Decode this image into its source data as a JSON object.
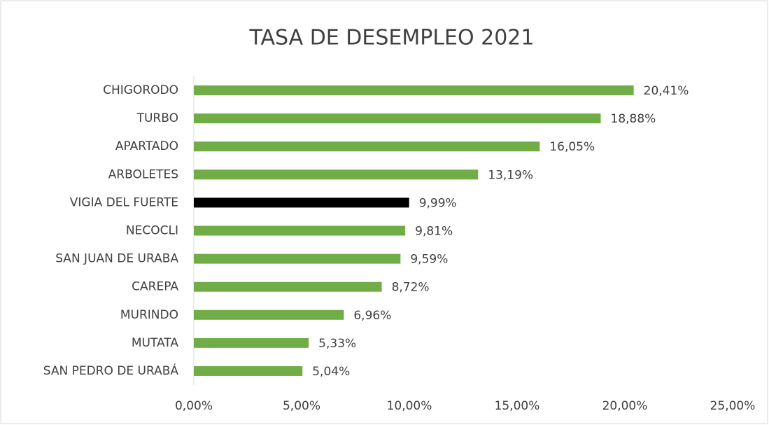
{
  "chart_data": {
    "type": "bar",
    "orientation": "horizontal",
    "title": "TASA DE DESEMPLEO 2021",
    "categories": [
      "CHIGORODO",
      "TURBO",
      "APARTADO",
      "ARBOLETES",
      "VIGIA DEL FUERTE",
      "NECOCLI",
      "SAN JUAN DE URABA",
      "CAREPA",
      "MURINDO",
      "MUTATA",
      "SAN PEDRO DE URABÁ"
    ],
    "values": [
      20.41,
      18.88,
      16.05,
      13.19,
      9.99,
      9.81,
      9.59,
      8.72,
      6.96,
      5.33,
      5.04
    ],
    "value_labels": [
      "20,41%",
      "18,88%",
      "16,05%",
      "13,19%",
      "9,99%",
      "9,81%",
      "9,59%",
      "8,72%",
      "6,96%",
      "5,33%",
      "5,04%"
    ],
    "colors": [
      "#70ad47",
      "#70ad47",
      "#70ad47",
      "#70ad47",
      "#000000",
      "#70ad47",
      "#70ad47",
      "#70ad47",
      "#70ad47",
      "#70ad47",
      "#70ad47"
    ],
    "xlim": [
      0,
      25
    ],
    "xticks": [
      {
        "value": 0,
        "label": "0,00%"
      },
      {
        "value": 5,
        "label": "5,00%"
      },
      {
        "value": 10,
        "label": "10,00%"
      },
      {
        "value": 15,
        "label": "15,00%"
      },
      {
        "value": 20,
        "label": "20,00%"
      },
      {
        "value": 25,
        "label": "25,00%"
      }
    ],
    "grid": false
  }
}
